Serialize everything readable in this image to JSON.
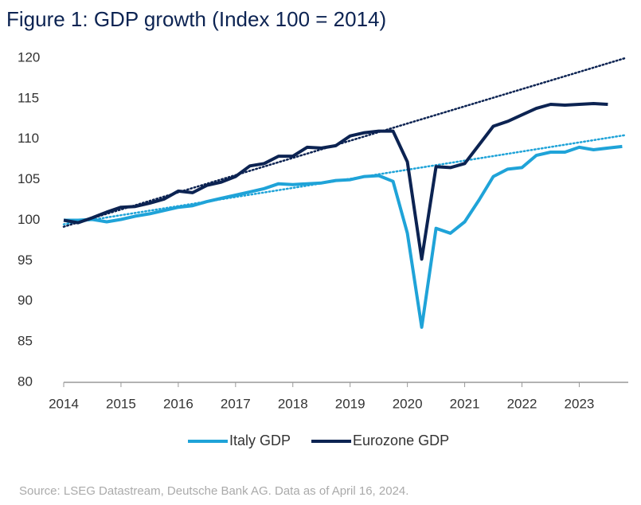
{
  "chart_data": {
    "type": "line",
    "title": "Figure 1: GDP growth (Index 100 = 2014)",
    "source": "Source: LSEG Datastream, Deutsche Bank AG. Data as of April 16, 2024.",
    "x": [
      2014,
      2014.25,
      2014.5,
      2014.75,
      2015,
      2015.25,
      2015.5,
      2015.75,
      2016,
      2016.25,
      2016.5,
      2016.75,
      2017,
      2017.25,
      2017.5,
      2017.75,
      2018,
      2018.25,
      2018.5,
      2018.75,
      2019,
      2019.25,
      2019.5,
      2019.75,
      2020,
      2020.25,
      2020.5,
      2020.75,
      2021,
      2021.25,
      2021.5,
      2021.75,
      2022,
      2022.25,
      2022.5,
      2022.75,
      2023,
      2023.25,
      2023.5,
      2023.75
    ],
    "series": [
      {
        "name": "Italy GDP",
        "color": "#1fa3d8",
        "values": [
          100,
          100,
          100.1,
          99.8,
          100.1,
          100.5,
          100.8,
          101.2,
          101.6,
          101.8,
          102.3,
          102.7,
          103.1,
          103.5,
          103.9,
          104.5,
          104.4,
          104.5,
          104.6,
          104.9,
          105.0,
          105.4,
          105.5,
          104.8,
          98.4,
          86.8,
          99.0,
          98.4,
          99.8,
          102.5,
          105.4,
          106.3,
          106.5,
          108.0,
          108.4,
          108.4,
          109.0,
          108.7,
          108.9,
          109.1
        ]
      },
      {
        "name": "Eurozone GDP",
        "color": "#0c2352",
        "values": [
          100,
          99.7,
          100.3,
          101.0,
          101.6,
          101.7,
          102.1,
          102.6,
          103.6,
          103.4,
          104.3,
          104.7,
          105.4,
          106.7,
          107.0,
          107.9,
          107.9,
          109.0,
          108.9,
          109.2,
          110.4,
          110.8,
          111.0,
          111.0,
          107.2,
          95.2,
          106.6,
          106.5,
          107.0,
          109.3,
          111.6,
          112.2,
          113.0,
          113.8,
          114.3,
          114.2,
          114.3,
          114.4,
          114.3,
          null
        ]
      }
    ],
    "trend_lines": [
      {
        "color": "#1fa3d8",
        "x": [
          2014,
          2023.8
        ],
        "values": [
          99.5,
          110.5
        ]
      },
      {
        "color": "#0c2352",
        "x": [
          2014,
          2023.8
        ],
        "values": [
          99.2,
          120
        ]
      }
    ],
    "xlim": [
      2014,
      2023.8
    ],
    "xticks": [
      2014,
      2015,
      2016,
      2017,
      2018,
      2019,
      2020,
      2021,
      2022,
      2023
    ],
    "ylim": [
      80,
      120
    ],
    "yticks": [
      80,
      85,
      90,
      95,
      100,
      105,
      110,
      115,
      120
    ],
    "grid": false,
    "legend": "bottom"
  }
}
